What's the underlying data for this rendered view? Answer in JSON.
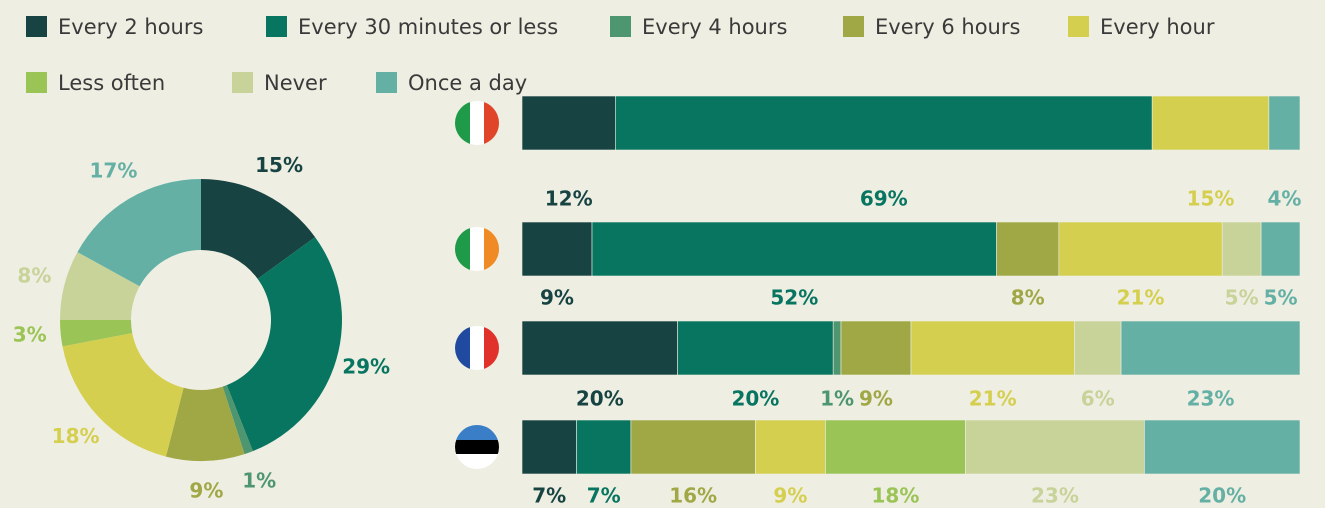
{
  "chart_data": [
    {
      "type": "pie",
      "donut": true,
      "colors": [
        "#174443",
        "#077560",
        "#4e9670",
        "#a0a845",
        "#d5cf50",
        "#9ac456",
        "#c8d39a",
        "#64b0a5"
      ],
      "values": [
        15,
        29,
        1,
        9,
        18,
        3,
        8,
        17
      ],
      "value_labels": [
        "15%",
        "29%",
        "1%",
        "9%",
        "18%",
        "3%",
        "8%",
        "17%"
      ]
    },
    {
      "type": "bar",
      "orientation": "horizontal",
      "stacked": true,
      "categories": [
        null,
        null,
        null,
        null
      ],
      "xlim": [
        0,
        100
      ],
      "series": [
        {
          "name": "Every 2 hours",
          "color": "#174443",
          "values": [
            12,
            9,
            20,
            7
          ],
          "value_labels": [
            "12%",
            "9%",
            "20%",
            "7%"
          ]
        },
        {
          "name": "Every 30 minutes or less",
          "color": "#077560",
          "values": [
            69,
            52,
            20,
            7
          ],
          "value_labels": [
            "69%",
            "52%",
            "20%",
            "7%"
          ]
        },
        {
          "name": "Every 4 hours",
          "color": "#4e9670",
          "values": [
            null,
            null,
            1,
            null
          ],
          "value_labels": [
            null,
            null,
            "1%",
            null
          ]
        },
        {
          "name": "Every 6 hours",
          "color": "#a0a845",
          "values": [
            null,
            8,
            9,
            16
          ],
          "value_labels": [
            null,
            "8%",
            "9%",
            "16%"
          ]
        },
        {
          "name": "Every hour",
          "color": "#d5cf50",
          "values": [
            15,
            21,
            21,
            9
          ],
          "value_labels": [
            "15%",
            "21%",
            "21%",
            "9%"
          ]
        },
        {
          "name": "Less often",
          "color": "#9ac456",
          "values": [
            null,
            null,
            null,
            18
          ],
          "value_labels": [
            null,
            null,
            null,
            "18%"
          ]
        },
        {
          "name": "Never",
          "color": "#c8d39a",
          "values": [
            null,
            5,
            6,
            23
          ],
          "value_labels": [
            null,
            "5%",
            "6%",
            "23%"
          ]
        },
        {
          "name": "Once a day",
          "color": "#64b0a5",
          "values": [
            4,
            5,
            23,
            20
          ],
          "value_labels": [
            "4%",
            "5%",
            "23%",
            "20%"
          ]
        }
      ]
    }
  ]
}
